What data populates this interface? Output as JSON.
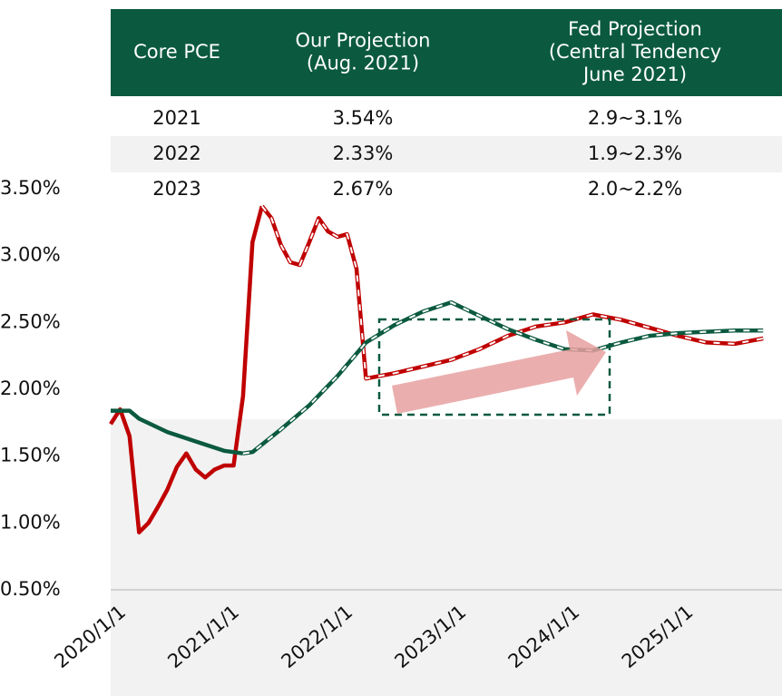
{
  "table": {
    "header": [
      [
        "Core PCE"
      ],
      [
        "Our Projection",
        "(Aug. 2021)"
      ],
      [
        "Fed Projection",
        "(Central Tendency",
        "June 2021)"
      ]
    ],
    "rows": [
      [
        "2021",
        "3.54%",
        "2.9~3.1%"
      ],
      [
        "2022",
        "2.33%",
        "1.9~2.3%"
      ],
      [
        "2023",
        "2.67%",
        "2.0~2.2%"
      ]
    ]
  },
  "chart_data": {
    "type": "line",
    "xlim": [
      "2020/1/1",
      "2025/12/1"
    ],
    "xticks": [
      "2020/1/1",
      "2021/1/1",
      "2022/1/1",
      "2023/1/1",
      "2024/1/1",
      "2025/1/1"
    ],
    "ylim": [
      0.5,
      3.5
    ],
    "yticks": [
      {
        "value": 0.5,
        "label": "0.50%"
      },
      {
        "value": 1.0,
        "label": "1.00%"
      },
      {
        "value": 1.5,
        "label": "1.50%"
      },
      {
        "value": 2.0,
        "label": "2.00%"
      },
      {
        "value": 2.5,
        "label": "2.50%"
      },
      {
        "value": 3.0,
        "label": "3.00%"
      },
      {
        "value": 3.5,
        "label": "3.50%"
      }
    ],
    "series": [
      {
        "color": "#c00000",
        "dashed_from": "2021/5/1",
        "x": [
          "2020/1/1",
          "2020/2/1",
          "2020/3/1",
          "2020/4/1",
          "2020/5/1",
          "2020/6/1",
          "2020/7/1",
          "2020/8/1",
          "2020/9/1",
          "2020/10/1",
          "2020/11/1",
          "2020/12/1",
          "2021/1/1",
          "2021/2/1",
          "2021/3/1",
          "2021/4/1",
          "2021/5/1",
          "2021/6/1",
          "2021/7/1",
          "2021/8/1",
          "2021/9/1",
          "2021/10/1",
          "2021/11/1",
          "2021/12/1",
          "2022/1/1",
          "2022/2/1",
          "2022/3/1",
          "2022/4/1",
          "2022/7/1",
          "2022/10/1",
          "2023/1/1",
          "2023/4/1",
          "2023/7/1",
          "2023/10/1",
          "2024/1/1",
          "2024/4/1",
          "2024/7/1",
          "2024/10/1",
          "2025/1/1",
          "2025/4/1",
          "2025/7/1",
          "2025/10/1"
        ],
        "values": [
          1.74,
          1.85,
          1.65,
          0.93,
          1.0,
          1.12,
          1.25,
          1.42,
          1.52,
          1.4,
          1.34,
          1.4,
          1.43,
          1.43,
          1.95,
          3.1,
          3.37,
          3.28,
          3.08,
          2.95,
          2.93,
          3.1,
          3.28,
          3.18,
          3.14,
          3.16,
          2.9,
          2.08,
          2.12,
          2.17,
          2.22,
          2.3,
          2.4,
          2.47,
          2.5,
          2.56,
          2.52,
          2.46,
          2.4,
          2.35,
          2.34,
          2.38
        ]
      },
      {
        "color": "#0b5a3f",
        "dashed_from": "2021/3/1",
        "x": [
          "2020/1/1",
          "2020/3/1",
          "2020/4/1",
          "2020/7/1",
          "2020/10/1",
          "2021/1/1",
          "2021/3/1",
          "2021/4/1",
          "2021/7/1",
          "2021/10/1",
          "2022/1/1",
          "2022/4/1",
          "2022/7/1",
          "2022/10/1",
          "2023/1/1",
          "2023/4/1",
          "2023/7/1",
          "2023/10/1",
          "2024/1/1",
          "2024/4/1",
          "2024/7/1",
          "2024/10/1",
          "2025/1/1",
          "2025/4/1",
          "2025/7/1",
          "2025/10/1"
        ],
        "values": [
          1.84,
          1.84,
          1.78,
          1.68,
          1.61,
          1.54,
          1.52,
          1.53,
          1.7,
          1.88,
          2.1,
          2.35,
          2.48,
          2.58,
          2.65,
          2.55,
          2.45,
          2.37,
          2.3,
          2.29,
          2.35,
          2.4,
          2.42,
          2.43,
          2.44,
          2.44
        ]
      }
    ]
  }
}
